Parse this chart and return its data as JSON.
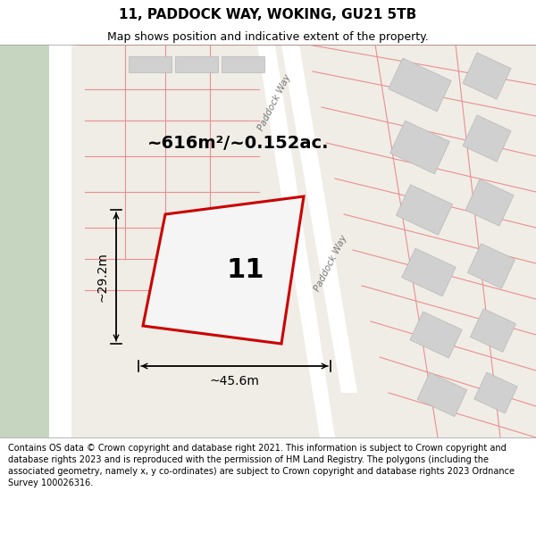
{
  "title": "11, PADDOCK WAY, WOKING, GU21 5TB",
  "subtitle": "Map shows position and indicative extent of the property.",
  "footer": "Contains OS data © Crown copyright and database right 2021. This information is subject to Crown copyright and database rights 2023 and is reproduced with the permission of HM Land Registry. The polygons (including the associated geometry, namely x, y co-ordinates) are subject to Crown copyright and database rights 2023 Ordnance Survey 100026316.",
  "bg_color": "#f0ede6",
  "green_color": "#c5d5c0",
  "white": "#ffffff",
  "road_white": "#f8f8f8",
  "plot_red": "#cc0000",
  "plot_fill": "#eeeeee",
  "parcel_color": "#e89090",
  "building_fill": "#d0d0d0",
  "building_edge": "#b8b8b8",
  "area_text": "~616m²/~0.152ac.",
  "width_text": "~45.6m",
  "height_text": "~29.2m",
  "number_text": "11",
  "street_label": "Paddock Way",
  "title_fontsize": 11,
  "subtitle_fontsize": 9,
  "footer_fontsize": 7,
  "area_fontsize": 14,
  "dim_fontsize": 10,
  "number_fontsize": 22
}
